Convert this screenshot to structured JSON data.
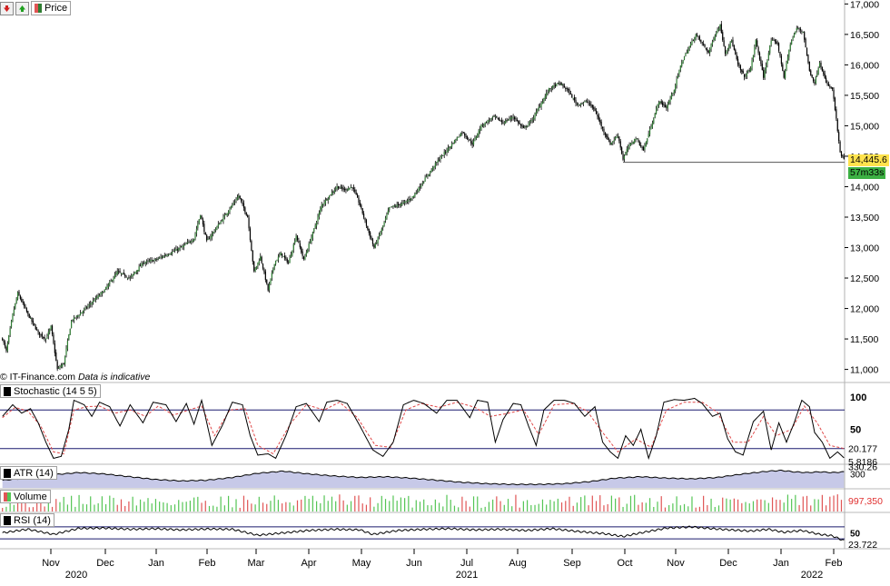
{
  "toolbar": {
    "down_icon": "down-arrow-icon",
    "up_icon": "up-arrow-icon",
    "series_label": "Price"
  },
  "credit": {
    "site": "IT-Finance.com",
    "note": "Data is indicative"
  },
  "colors": {
    "bull_candle": "#2e7d32",
    "bear_candle": "#000000",
    "grid": "#d0d0d0",
    "last_price_bg": "#ffe24d",
    "countdown_bg": "#3cb043",
    "atr_fill": "#c7c9e8",
    "volume_up": "#55c555",
    "volume_down": "#e05555",
    "signal_line": "#e04848",
    "indicator_line": "#000000",
    "level_line": "#1a1a6e"
  },
  "chart_data": [
    {
      "type": "candlestick",
      "pane": "price",
      "y_ticks": [
        "11,000",
        "11,500",
        "12,000",
        "12,500",
        "13,000",
        "13,500",
        "14,000",
        "14,500",
        "15,000",
        "15,500",
        "16,000",
        "16,500",
        "17,000"
      ],
      "ylim": [
        10800,
        17050
      ],
      "x_ticks": [
        "Nov",
        "Dec",
        "Jan",
        "Feb",
        "Mar",
        "Apr",
        "May",
        "Jun",
        "Jul",
        "Aug",
        "Sep",
        "Oct",
        "Nov",
        "Dec",
        "Jan",
        "Feb"
      ],
      "year_labels": [
        "2020",
        "2021",
        "2022"
      ],
      "anchors": [
        [
          0,
          11500
        ],
        [
          3,
          11300
        ],
        [
          8,
          11900
        ],
        [
          12,
          12250
        ],
        [
          20,
          11900
        ],
        [
          28,
          11600
        ],
        [
          34,
          11500
        ],
        [
          38,
          11700
        ],
        [
          43,
          11000
        ],
        [
          48,
          11100
        ],
        [
          54,
          11800
        ],
        [
          60,
          11900
        ],
        [
          70,
          12100
        ],
        [
          80,
          12300
        ],
        [
          90,
          12600
        ],
        [
          100,
          12500
        ],
        [
          110,
          12750
        ],
        [
          120,
          12800
        ],
        [
          130,
          12900
        ],
        [
          140,
          13000
        ],
        [
          150,
          13150
        ],
        [
          155,
          13550
        ],
        [
          160,
          13100
        ],
        [
          170,
          13400
        ],
        [
          180,
          13700
        ],
        [
          185,
          13850
        ],
        [
          192,
          13500
        ],
        [
          197,
          12600
        ],
        [
          202,
          12850
        ],
        [
          208,
          12300
        ],
        [
          213,
          12750
        ],
        [
          218,
          12900
        ],
        [
          224,
          12750
        ],
        [
          230,
          13200
        ],
        [
          236,
          12800
        ],
        [
          244,
          13300
        ],
        [
          250,
          13700
        ],
        [
          256,
          13850
        ],
        [
          262,
          14000
        ],
        [
          268,
          13950
        ],
        [
          274,
          14000
        ],
        [
          280,
          13700
        ],
        [
          286,
          13300
        ],
        [
          291,
          13000
        ],
        [
          297,
          13300
        ],
        [
          303,
          13650
        ],
        [
          310,
          13700
        ],
        [
          316,
          13750
        ],
        [
          322,
          13850
        ],
        [
          330,
          14100
        ],
        [
          340,
          14400
        ],
        [
          350,
          14650
        ],
        [
          360,
          14900
        ],
        [
          368,
          14700
        ],
        [
          375,
          15000
        ],
        [
          385,
          15150
        ],
        [
          392,
          15050
        ],
        [
          400,
          15150
        ],
        [
          408,
          14950
        ],
        [
          415,
          15100
        ],
        [
          420,
          15300
        ],
        [
          428,
          15600
        ],
        [
          436,
          15700
        ],
        [
          442,
          15600
        ],
        [
          450,
          15350
        ],
        [
          458,
          15400
        ],
        [
          464,
          15250
        ],
        [
          470,
          14950
        ],
        [
          476,
          14700
        ],
        [
          482,
          14850
        ],
        [
          486,
          14450
        ],
        [
          490,
          14650
        ],
        [
          496,
          14800
        ],
        [
          502,
          14600
        ],
        [
          508,
          15000
        ],
        [
          514,
          15400
        ],
        [
          520,
          15300
        ],
        [
          526,
          15600
        ],
        [
          532,
          16050
        ],
        [
          538,
          16300
        ],
        [
          543,
          16500
        ],
        [
          548,
          16350
        ],
        [
          553,
          16200
        ],
        [
          558,
          16500
        ],
        [
          562,
          16650
        ],
        [
          566,
          16200
        ],
        [
          571,
          16400
        ],
        [
          576,
          16000
        ],
        [
          581,
          15800
        ],
        [
          586,
          15950
        ],
        [
          590,
          16400
        ],
        [
          596,
          15800
        ],
        [
          602,
          16400
        ],
        [
          607,
          16350
        ],
        [
          612,
          15800
        ],
        [
          617,
          16350
        ],
        [
          622,
          16600
        ],
        [
          627,
          16550
        ],
        [
          632,
          15900
        ],
        [
          636,
          15700
        ],
        [
          640,
          16050
        ],
        [
          645,
          15700
        ],
        [
          650,
          15600
        ],
        [
          653,
          15100
        ],
        [
          656,
          14550
        ],
        [
          659,
          14445.6
        ]
      ],
      "last_price": "14,445.6",
      "countdown": "57m33s",
      "support_level": 14400,
      "support_from_bar": 486
    },
    {
      "type": "line",
      "pane": "stochastic",
      "legend": "Stochastic (14 5 5)",
      "ticks": [
        "100",
        "50"
      ],
      "levels": [
        80,
        20
      ],
      "ylim": [
        0,
        100
      ],
      "last_values": [
        "20.177",
        "5.8186"
      ],
      "anchors": [
        [
          0,
          70
        ],
        [
          8,
          88
        ],
        [
          15,
          75
        ],
        [
          22,
          82
        ],
        [
          28,
          60
        ],
        [
          34,
          30
        ],
        [
          40,
          5
        ],
        [
          46,
          8
        ],
        [
          52,
          50
        ],
        [
          56,
          95
        ],
        [
          64,
          88
        ],
        [
          70,
          70
        ],
        [
          76,
          92
        ],
        [
          84,
          85
        ],
        [
          92,
          55
        ],
        [
          100,
          88
        ],
        [
          110,
          60
        ],
        [
          118,
          92
        ],
        [
          128,
          88
        ],
        [
          136,
          62
        ],
        [
          144,
          90
        ],
        [
          150,
          58
        ],
        [
          156,
          95
        ],
        [
          164,
          25
        ],
        [
          172,
          55
        ],
        [
          180,
          92
        ],
        [
          188,
          88
        ],
        [
          194,
          40
        ],
        [
          200,
          10
        ],
        [
          208,
          12
        ],
        [
          214,
          5
        ],
        [
          222,
          40
        ],
        [
          230,
          85
        ],
        [
          238,
          90
        ],
        [
          248,
          62
        ],
        [
          254,
          92
        ],
        [
          262,
          95
        ],
        [
          270,
          90
        ],
        [
          280,
          55
        ],
        [
          290,
          18
        ],
        [
          298,
          8
        ],
        [
          306,
          30
        ],
        [
          314,
          88
        ],
        [
          322,
          95
        ],
        [
          330,
          90
        ],
        [
          340,
          75
        ],
        [
          348,
          95
        ],
        [
          356,
          95
        ],
        [
          366,
          68
        ],
        [
          372,
          95
        ],
        [
          380,
          92
        ],
        [
          386,
          30
        ],
        [
          392,
          65
        ],
        [
          400,
          90
        ],
        [
          406,
          88
        ],
        [
          412,
          55
        ],
        [
          418,
          25
        ],
        [
          424,
          80
        ],
        [
          432,
          95
        ],
        [
          440,
          95
        ],
        [
          448,
          90
        ],
        [
          456,
          70
        ],
        [
          464,
          85
        ],
        [
          470,
          30
        ],
        [
          476,
          15
        ],
        [
          482,
          5
        ],
        [
          488,
          40
        ],
        [
          494,
          25
        ],
        [
          500,
          50
        ],
        [
          506,
          5
        ],
        [
          512,
          40
        ],
        [
          518,
          92
        ],
        [
          526,
          96
        ],
        [
          534,
          95
        ],
        [
          542,
          98
        ],
        [
          548,
          90
        ],
        [
          556,
          70
        ],
        [
          562,
          75
        ],
        [
          568,
          35
        ],
        [
          574,
          15
        ],
        [
          580,
          10
        ],
        [
          588,
          62
        ],
        [
          596,
          78
        ],
        [
          602,
          18
        ],
        [
          608,
          60
        ],
        [
          614,
          30
        ],
        [
          620,
          60
        ],
        [
          626,
          95
        ],
        [
          632,
          85
        ],
        [
          636,
          45
        ],
        [
          642,
          30
        ],
        [
          648,
          5
        ],
        [
          654,
          15
        ],
        [
          659,
          5.8
        ]
      ],
      "signal_anchors": [
        [
          0,
          68
        ],
        [
          10,
          84
        ],
        [
          20,
          78
        ],
        [
          30,
          55
        ],
        [
          40,
          15
        ],
        [
          48,
          12
        ],
        [
          56,
          80
        ],
        [
          66,
          85
        ],
        [
          76,
          86
        ],
        [
          88,
          75
        ],
        [
          100,
          80
        ],
        [
          112,
          70
        ],
        [
          122,
          86
        ],
        [
          134,
          72
        ],
        [
          146,
          80
        ],
        [
          156,
          86
        ],
        [
          166,
          40
        ],
        [
          178,
          80
        ],
        [
          190,
          82
        ],
        [
          200,
          25
        ],
        [
          212,
          12
        ],
        [
          226,
          60
        ],
        [
          238,
          88
        ],
        [
          252,
          80
        ],
        [
          264,
          92
        ],
        [
          278,
          68
        ],
        [
          292,
          25
        ],
        [
          304,
          22
        ],
        [
          316,
          80
        ],
        [
          328,
          90
        ],
        [
          342,
          84
        ],
        [
          356,
          92
        ],
        [
          370,
          84
        ],
        [
          382,
          70
        ],
        [
          394,
          74
        ],
        [
          408,
          80
        ],
        [
          420,
          42
        ],
        [
          432,
          88
        ],
        [
          446,
          90
        ],
        [
          458,
          78
        ],
        [
          470,
          45
        ],
        [
          482,
          15
        ],
        [
          496,
          35
        ],
        [
          508,
          22
        ],
        [
          520,
          80
        ],
        [
          534,
          92
        ],
        [
          548,
          92
        ],
        [
          560,
          76
        ],
        [
          572,
          30
        ],
        [
          584,
          30
        ],
        [
          596,
          70
        ],
        [
          606,
          40
        ],
        [
          618,
          50
        ],
        [
          628,
          86
        ],
        [
          638,
          60
        ],
        [
          648,
          25
        ],
        [
          659,
          20.2
        ]
      ]
    },
    {
      "type": "area",
      "pane": "atr",
      "legend": "ATR (14)",
      "ticks": [
        "300"
      ],
      "last_value": "330.26",
      "ylim": [
        100,
        400
      ],
      "anchors": [
        [
          0,
          210
        ],
        [
          20,
          240
        ],
        [
          40,
          290
        ],
        [
          60,
          320
        ],
        [
          80,
          300
        ],
        [
          100,
          260
        ],
        [
          120,
          220
        ],
        [
          140,
          200
        ],
        [
          160,
          210
        ],
        [
          180,
          250
        ],
        [
          200,
          310
        ],
        [
          220,
          340
        ],
        [
          240,
          300
        ],
        [
          260,
          270
        ],
        [
          280,
          250
        ],
        [
          300,
          260
        ],
        [
          320,
          240
        ],
        [
          340,
          210
        ],
        [
          360,
          180
        ],
        [
          380,
          160
        ],
        [
          400,
          150
        ],
        [
          420,
          150
        ],
        [
          440,
          160
        ],
        [
          460,
          190
        ],
        [
          480,
          240
        ],
        [
          500,
          260
        ],
        [
          520,
          240
        ],
        [
          540,
          230
        ],
        [
          560,
          250
        ],
        [
          580,
          300
        ],
        [
          600,
          340
        ],
        [
          610,
          350
        ],
        [
          620,
          330
        ],
        [
          630,
          320
        ],
        [
          640,
          330
        ],
        [
          650,
          320
        ],
        [
          659,
          330.26
        ]
      ]
    },
    {
      "type": "bar",
      "pane": "volume",
      "legend": "Volume",
      "last_value": "997,350",
      "ylim": [
        0,
        1200000
      ]
    },
    {
      "type": "line",
      "pane": "rsi",
      "legend": "RSI (14)",
      "ticks": [
        "50"
      ],
      "levels": [
        70,
        30
      ],
      "ylim": [
        0,
        100
      ],
      "last_value": "23.722",
      "anchors": [
        [
          0,
          50
        ],
        [
          20,
          62
        ],
        [
          40,
          45
        ],
        [
          60,
          65
        ],
        [
          80,
          66
        ],
        [
          100,
          62
        ],
        [
          120,
          64
        ],
        [
          140,
          60
        ],
        [
          160,
          63
        ],
        [
          180,
          62
        ],
        [
          200,
          42
        ],
        [
          220,
          50
        ],
        [
          240,
          58
        ],
        [
          260,
          62
        ],
        [
          280,
          60
        ],
        [
          290,
          45
        ],
        [
          310,
          58
        ],
        [
          330,
          62
        ],
        [
          350,
          64
        ],
        [
          370,
          60
        ],
        [
          390,
          62
        ],
        [
          410,
          58
        ],
        [
          430,
          64
        ],
        [
          450,
          55
        ],
        [
          470,
          48
        ],
        [
          486,
          38
        ],
        [
          500,
          50
        ],
        [
          520,
          66
        ],
        [
          540,
          70
        ],
        [
          556,
          64
        ],
        [
          570,
          60
        ],
        [
          586,
          56
        ],
        [
          600,
          62
        ],
        [
          612,
          52
        ],
        [
          626,
          58
        ],
        [
          640,
          45
        ],
        [
          650,
          40
        ],
        [
          659,
          23.7
        ]
      ]
    }
  ]
}
